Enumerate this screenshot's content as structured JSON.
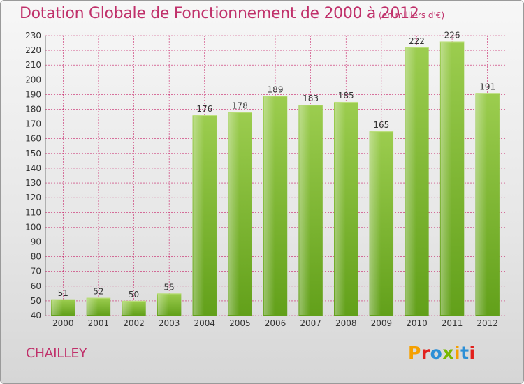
{
  "header": {
    "title": "Dotation Globale de Fonctionnement de 2000 à 2012",
    "unit": "(en milliers d'€)"
  },
  "footer": {
    "city": "CHAILLEY",
    "logo_letters": [
      "P",
      "r",
      "o",
      "x",
      "i",
      "t",
      "i"
    ],
    "logo_colors": [
      "#f5a000",
      "#e2201c",
      "#2c8fd6",
      "#7ab800",
      "#f5a000",
      "#2c8fd6",
      "#e2201c"
    ]
  },
  "chart_data": {
    "type": "bar",
    "title": "Dotation Globale de Fonctionnement de 2000 à 2012",
    "subtitle": "(en milliers d'€)",
    "categories": [
      "2000",
      "2001",
      "2002",
      "2003",
      "2004",
      "2005",
      "2006",
      "2007",
      "2008",
      "2009",
      "2010",
      "2011",
      "2012"
    ],
    "values": [
      51,
      52,
      50,
      55,
      176,
      178,
      189,
      183,
      185,
      165,
      222,
      226,
      191
    ],
    "ylim": [
      40,
      230
    ],
    "yticks": [
      40,
      50,
      60,
      70,
      80,
      90,
      100,
      110,
      120,
      130,
      140,
      150,
      160,
      170,
      180,
      190,
      200,
      210,
      220,
      230
    ],
    "grid": true,
    "bar_color": "#7cb829",
    "grid_color": "#c82368"
  }
}
